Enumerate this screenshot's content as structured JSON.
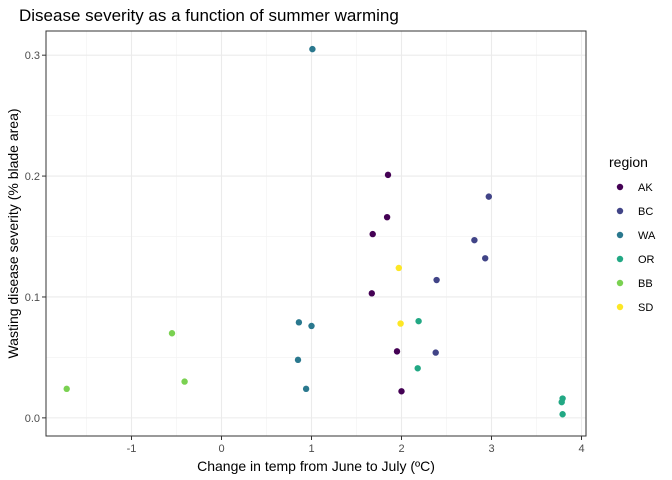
{
  "chart_data": {
    "type": "scatter",
    "title": "Disease severity as a function of summer warming",
    "xlabel": "Change in temp from June to July (ºC)",
    "ylabel": "Wasting disease severity (% blade area)",
    "xlim": [
      -1.95,
      4.05
    ],
    "ylim": [
      -0.015,
      0.32
    ],
    "x_ticks": [
      -1,
      0,
      1,
      2,
      3,
      4
    ],
    "y_ticks": [
      0.0,
      0.1,
      0.2,
      0.3
    ],
    "x_tick_labels": [
      "-1",
      "0",
      "1",
      "2",
      "3",
      "4"
    ],
    "y_tick_labels": [
      "0.0",
      "0.1",
      "0.2",
      "0.3"
    ],
    "grid": true,
    "legend_placement": "right",
    "legend_title": "region",
    "series": [
      {
        "name": "AK",
        "color": "#440154",
        "points": [
          [
            1.85,
            0.201
          ],
          [
            1.84,
            0.166
          ],
          [
            1.68,
            0.152
          ],
          [
            1.67,
            0.103
          ],
          [
            1.95,
            0.055
          ],
          [
            2.0,
            0.022
          ]
        ]
      },
      {
        "name": "BC",
        "color": "#414487",
        "points": [
          [
            2.97,
            0.183
          ],
          [
            2.81,
            0.147
          ],
          [
            2.93,
            0.132
          ],
          [
            2.39,
            0.114
          ],
          [
            2.38,
            0.054
          ]
        ]
      },
      {
        "name": "WA",
        "color": "#2A788E",
        "points": [
          [
            1.01,
            0.305
          ],
          [
            0.86,
            0.079
          ],
          [
            1.0,
            0.076
          ],
          [
            0.85,
            0.048
          ],
          [
            0.94,
            0.024
          ]
        ]
      },
      {
        "name": "OR",
        "color": "#22A884",
        "points": [
          [
            2.19,
            0.08
          ],
          [
            2.18,
            0.041
          ],
          [
            3.79,
            0.016
          ],
          [
            3.78,
            0.013
          ],
          [
            3.79,
            0.003
          ]
        ]
      },
      {
        "name": "BB",
        "color": "#7AD151",
        "points": [
          [
            -0.55,
            0.07
          ],
          [
            -0.41,
            0.03
          ],
          [
            -1.72,
            0.024
          ]
        ]
      },
      {
        "name": "SD",
        "color": "#FDE725",
        "points": [
          [
            1.97,
            0.124
          ],
          [
            1.99,
            0.078
          ]
        ]
      }
    ]
  }
}
